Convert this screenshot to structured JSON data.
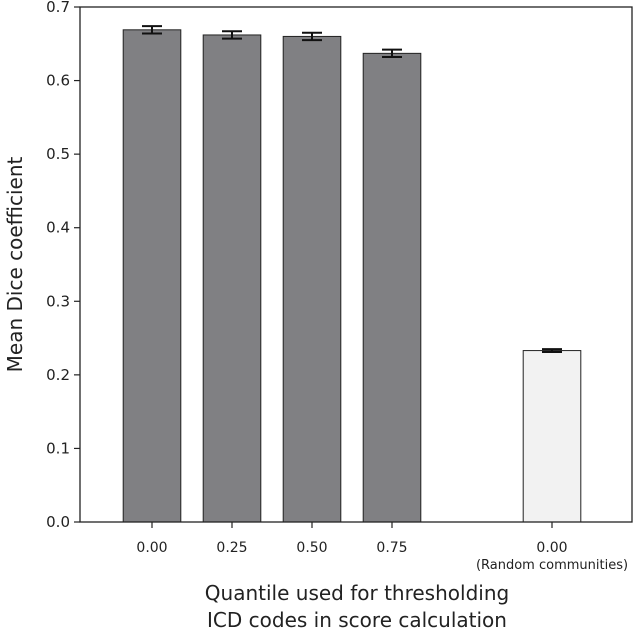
{
  "chart_data": {
    "type": "bar",
    "title": "",
    "xlabel_lines": [
      "Quantile used for thresholding",
      "ICD codes in score calculation"
    ],
    "ylabel": "Mean Dice coefficient",
    "ylim": [
      0,
      0.7
    ],
    "yticks": [
      "0.0",
      "0.1",
      "0.2",
      "0.3",
      "0.4",
      "0.5",
      "0.6",
      "0.7"
    ],
    "grid": false,
    "categories": [
      "0.00",
      "0.25",
      "0.50",
      "0.75",
      "0.00"
    ],
    "category_sublabels": [
      "",
      "",
      "",
      "",
      "(Random communities)"
    ],
    "x_positions": [
      0,
      1,
      2,
      3,
      5
    ],
    "values": [
      0.669,
      0.662,
      0.66,
      0.637,
      0.233
    ],
    "errors": [
      0.005,
      0.005,
      0.005,
      0.005,
      0.002
    ],
    "bar_colors": [
      "#808083",
      "#808083",
      "#808083",
      "#808083",
      "#f2f2f2"
    ],
    "edge_color": "#222222"
  }
}
